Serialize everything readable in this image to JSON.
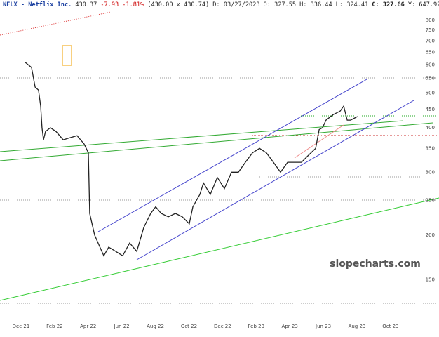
{
  "chart_data": {
    "type": "line",
    "title": "NFLX - Netflix Inc.",
    "header": [
      "430.37",
      "-7.93",
      "-1.81%",
      "(430.00 x 430.74)",
      "D: 03/27/2023",
      "O: 327.55",
      "H: 336.44",
      "L: 324.41",
      "C: 327.66",
      "Y: 647.92"
    ],
    "watermark": "slopecharts.com",
    "log_y": true,
    "grid": false,
    "xlim": [
      -1.25,
      23.8
    ],
    "xticks": [
      {
        "value": 0,
        "label": "Dec 21"
      },
      {
        "value": 2,
        "label": "Feb 22"
      },
      {
        "value": 4,
        "label": "Apr 22"
      },
      {
        "value": 6,
        "label": "Jun 22"
      },
      {
        "value": 8,
        "label": "Aug 22"
      },
      {
        "value": 10,
        "label": "Oct 22"
      },
      {
        "value": 12,
        "label": "Dec 22"
      },
      {
        "value": 14,
        "label": "Feb 23"
      },
      {
        "value": 16,
        "label": "Apr 23"
      },
      {
        "value": 18,
        "label": "Jun 23"
      },
      {
        "value": 20,
        "label": "Aug 23"
      },
      {
        "value": 22,
        "label": "Oct 23"
      }
    ],
    "ylim": [
      116,
      912
    ],
    "yticks": [
      150,
      200,
      250,
      300,
      350,
      400,
      450,
      500,
      550,
      600,
      650,
      700,
      750,
      800
    ],
    "series": [
      {
        "color": "#222222",
        "x": [
          0.25,
          0.63,
          0.84,
          1.04,
          1.17,
          1.25,
          1.34,
          1.46,
          1.75,
          2.09,
          2.51,
          2.92,
          3.34,
          3.76,
          4.01,
          4.09,
          4.38,
          4.59,
          4.93,
          5.22,
          5.64,
          6.05,
          6.47,
          6.89,
          7.31,
          7.72,
          8.02,
          8.35,
          8.77,
          9.19,
          9.6,
          10.02,
          10.23,
          10.65,
          10.86,
          11.27,
          11.69,
          12.11,
          12.53,
          12.94,
          13.36,
          13.78,
          14.2,
          14.61,
          15.03,
          15.45,
          15.87,
          16.28,
          16.7,
          17.12,
          17.54,
          17.75,
          17.95,
          18.16,
          18.58,
          19.0,
          19.21,
          19.42,
          19.62,
          19.83,
          20.04
        ],
        "values": [
          610,
          590,
          520,
          510,
          460,
          400,
          370,
          390,
          400,
          390,
          370,
          375,
          380,
          360,
          340,
          230,
          200,
          190,
          175,
          185,
          180,
          175,
          190,
          180,
          210,
          230,
          240,
          230,
          225,
          230,
          225,
          215,
          240,
          260,
          280,
          260,
          290,
          270,
          300,
          300,
          320,
          340,
          350,
          340,
          320,
          300,
          320,
          320,
          320,
          335,
          350,
          395,
          400,
          420,
          435,
          445,
          460,
          420,
          420,
          425,
          430
        ]
      }
    ]
  }
}
